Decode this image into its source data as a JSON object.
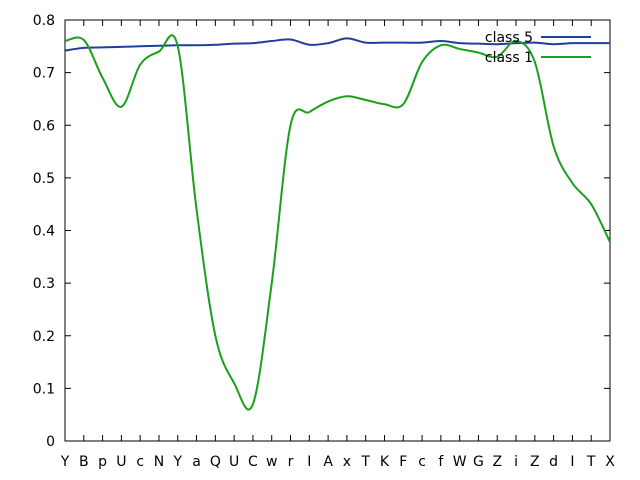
{
  "chart_data": {
    "type": "line",
    "title": "",
    "xlabel": "",
    "ylabel": "",
    "categories": [
      "Y",
      "B",
      "p",
      "U",
      "c",
      "N",
      "Y",
      "a",
      "Q",
      "U",
      "C",
      "w",
      "r",
      "I",
      "A",
      "x",
      "T",
      "K",
      "F",
      "c",
      "f",
      "W",
      "G",
      "Z",
      "i",
      "Z",
      "d",
      "I",
      "T",
      "X"
    ],
    "ylim": [
      0,
      0.8
    ],
    "yticks": [
      "0",
      "0.1",
      "0.2",
      "0.3",
      "0.4",
      "0.5",
      "0.6",
      "0.7",
      "0.8"
    ],
    "grid": false,
    "legend_position": "top-right",
    "series": [
      {
        "name": "class 5",
        "color": "#1f3f9a",
        "values": [
          0.742,
          0.747,
          0.748,
          0.749,
          0.75,
          0.751,
          0.752,
          0.752,
          0.753,
          0.755,
          0.756,
          0.76,
          0.763,
          0.753,
          0.756,
          0.765,
          0.757,
          0.757,
          0.757,
          0.757,
          0.76,
          0.756,
          0.755,
          0.754,
          0.756,
          0.757,
          0.754,
          0.756,
          0.756,
          0.756
        ]
      },
      {
        "name": "class 1",
        "color": "#1aa01a",
        "values": [
          0.76,
          0.762,
          0.69,
          0.635,
          0.715,
          0.74,
          0.75,
          0.44,
          0.2,
          0.11,
          0.07,
          0.3,
          0.6,
          0.625,
          0.645,
          0.655,
          0.648,
          0.64,
          0.64,
          0.72,
          0.752,
          0.745,
          0.738,
          0.73,
          0.76,
          0.72,
          0.56,
          0.49,
          0.45,
          0.378
        ]
      }
    ]
  }
}
